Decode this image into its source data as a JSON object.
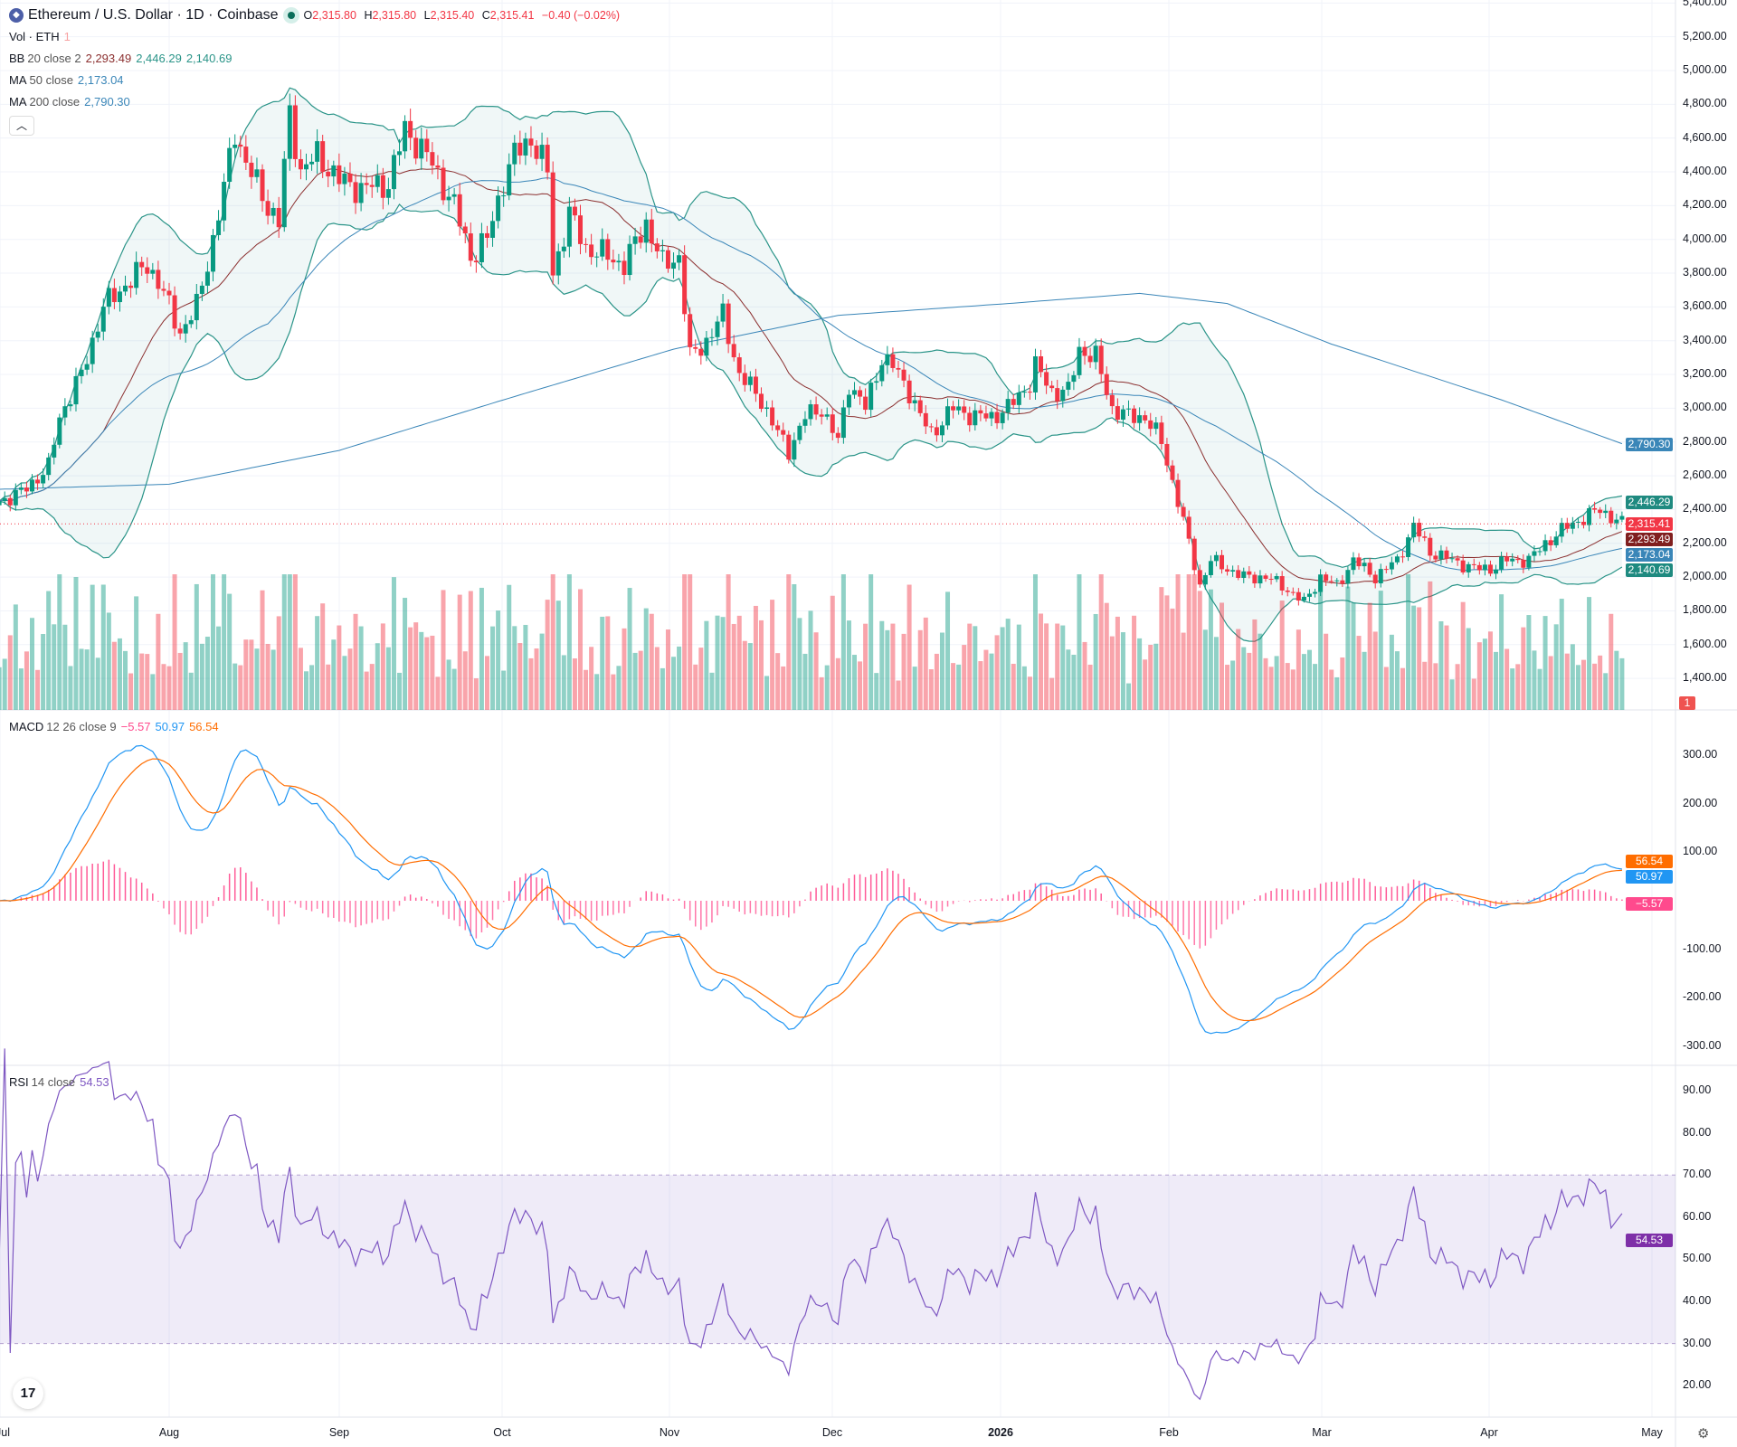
{
  "header": {
    "symbol": "Ethereum / U.S. Dollar · 1D · Coinbase",
    "open_label": "O",
    "open": "2,315.80",
    "high_label": "H",
    "high": "2,315.80",
    "low_label": "L",
    "low": "2,315.40",
    "close_label": "C",
    "close": "2,315.41",
    "change": "−0.40 (−0.02%)",
    "market_status": "open"
  },
  "legend": {
    "vol_label": "Vol · ETH",
    "vol_value": "1",
    "bb_label": "BB",
    "bb_params": "20 close 2",
    "bb_basis": "2,293.49",
    "bb_upper": "2,446.29",
    "bb_lower": "2,140.69",
    "ma50_label": "MA",
    "ma50_params": "50 close",
    "ma50_value": "2,173.04",
    "ma200_label": "MA",
    "ma200_params": "200 close",
    "ma200_value": "2,790.30",
    "collapse_icon": "chevron-up"
  },
  "macd_legend": {
    "label": "MACD",
    "params": "12 26 close 9",
    "hist": "−5.57",
    "macd": "50.97",
    "signal": "56.54"
  },
  "rsi_legend": {
    "label": "RSI",
    "params": "14 close",
    "value": "54.53"
  },
  "colors": {
    "up": "#089981",
    "down": "#f23645",
    "bb": "#2a9488",
    "bb_basis": "#8b2f2f",
    "ma50": "#3a86b8",
    "ma200": "#3a86b8",
    "macd": "#2196f3",
    "signal": "#ff6d00",
    "hist": "#ff4a8d",
    "rsi": "#7e57c2"
  },
  "badges": {
    "ma200": "2,790.30",
    "bb_upper": "2,446.29",
    "last": "2,315.41",
    "bb_basis": "2,293.49",
    "ma50": "2,173.04",
    "bb_lower": "2,140.69",
    "vol": "1",
    "signal": "56.54",
    "macd": "50.97",
    "hist": "−5.57",
    "rsi": "54.53"
  },
  "time_axis": [
    "Jul",
    "Aug",
    "Sep",
    "Oct",
    "Nov",
    "Dec",
    "2026",
    "Feb",
    "Mar",
    "Apr",
    "May"
  ],
  "chart_data": [
    {
      "type": "candlestick",
      "title": "Ethereum / U.S. Dollar · 1D · Coinbase",
      "y_ticks": [
        "5,400.00",
        "5,200.00",
        "5,000.00",
        "4,800.00",
        "4,600.00",
        "4,400.00",
        "4,200.00",
        "4,000.00",
        "3,800.00",
        "3,600.00",
        "3,400.00",
        "3,200.00",
        "3,000.00",
        "2,800.00",
        "2,600.00",
        "2,400.00",
        "2,200.00",
        "2,000.00",
        "1,800.00",
        "1,600.00",
        "1,400.00"
      ],
      "ylim": [
        1300,
        5400
      ],
      "last_price": 2315.41,
      "close_samples": [
        [
          "2025-07-01",
          2450
        ],
        [
          "2025-07-05",
          2500
        ],
        [
          "2025-07-10",
          2650
        ],
        [
          "2025-07-12",
          2950
        ],
        [
          "2025-07-16",
          3200
        ],
        [
          "2025-07-20",
          3600
        ],
        [
          "2025-07-23",
          3700
        ],
        [
          "2025-07-28",
          3850
        ],
        [
          "2025-07-30",
          3750
        ],
        [
          "2025-08-03",
          3450
        ],
        [
          "2025-08-06",
          3600
        ],
        [
          "2025-08-09",
          4000
        ],
        [
          "2025-08-11",
          4300
        ],
        [
          "2025-08-13",
          4650
        ],
        [
          "2025-08-15",
          4450
        ],
        [
          "2025-08-19",
          4200
        ],
        [
          "2025-08-21",
          4100
        ],
        [
          "2025-08-23",
          4750
        ],
        [
          "2025-08-25",
          4400
        ],
        [
          "2025-08-28",
          4500
        ],
        [
          "2025-09-01",
          4350
        ],
        [
          "2025-09-05",
          4300
        ],
        [
          "2025-09-10",
          4330
        ],
        [
          "2025-09-13",
          4650
        ],
        [
          "2025-09-17",
          4500
        ],
        [
          "2025-09-22",
          4200
        ],
        [
          "2025-09-25",
          3900
        ],
        [
          "2025-09-28",
          4000
        ],
        [
          "2025-10-01",
          4350
        ],
        [
          "2025-10-03",
          4500
        ],
        [
          "2025-10-06",
          4600
        ],
        [
          "2025-10-09",
          4400
        ],
        [
          "2025-10-10",
          3800
        ],
        [
          "2025-10-13",
          4150
        ],
        [
          "2025-10-16",
          3950
        ],
        [
          "2025-10-20",
          3900
        ],
        [
          "2025-10-23",
          3850
        ],
        [
          "2025-10-27",
          4100
        ],
        [
          "2025-10-30",
          3850
        ],
        [
          "2025-11-02",
          3900
        ],
        [
          "2025-11-04",
          3300
        ],
        [
          "2025-11-07",
          3400
        ],
        [
          "2025-11-10",
          3550
        ],
        [
          "2025-11-13",
          3200
        ],
        [
          "2025-11-17",
          3050
        ],
        [
          "2025-11-20",
          2850
        ],
        [
          "2025-11-22",
          2750
        ],
        [
          "2025-11-25",
          2950
        ],
        [
          "2025-11-28",
          3000
        ],
        [
          "2025-12-01",
          2800
        ],
        [
          "2025-12-03",
          3150
        ],
        [
          "2025-12-06",
          3000
        ],
        [
          "2025-12-09",
          3300
        ],
        [
          "2025-12-11",
          3250
        ],
        [
          "2025-12-14",
          3100
        ],
        [
          "2025-12-16",
          2950
        ],
        [
          "2025-12-18",
          2850
        ],
        [
          "2025-12-22",
          3000
        ],
        [
          "2025-12-26",
          2950
        ],
        [
          "2025-12-29",
          2950
        ],
        [
          "2026-01-01",
          3000
        ],
        [
          "2026-01-05",
          3150
        ],
        [
          "2026-01-06",
          3250
        ],
        [
          "2026-01-09",
          3100
        ],
        [
          "2026-01-12",
          3100
        ],
        [
          "2026-01-14",
          3350
        ],
        [
          "2026-01-17",
          3300
        ],
        [
          "2026-01-20",
          3000
        ],
        [
          "2026-01-23",
          2950
        ],
        [
          "2026-01-26",
          2950
        ],
        [
          "2026-01-29",
          2800
        ],
        [
          "2026-02-01",
          2450
        ],
        [
          "2026-02-03",
          2200
        ],
        [
          "2026-02-05",
          1950
        ],
        [
          "2026-02-07",
          2100
        ],
        [
          "2026-02-10",
          2050
        ],
        [
          "2026-02-13",
          2000
        ],
        [
          "2026-02-17",
          2000
        ],
        [
          "2026-02-20",
          1950
        ],
        [
          "2026-02-24",
          1850
        ],
        [
          "2026-02-27",
          2000
        ],
        [
          "2026-03-02",
          1950
        ],
        [
          "2026-03-05",
          2100
        ],
        [
          "2026-03-09",
          2000
        ],
        [
          "2026-03-13",
          2100
        ],
        [
          "2026-03-16",
          2300
        ],
        [
          "2026-03-19",
          2150
        ],
        [
          "2026-03-23",
          2100
        ],
        [
          "2026-03-27",
          2050
        ],
        [
          "2026-03-30",
          2050
        ],
        [
          "2026-04-02",
          2100
        ],
        [
          "2026-04-06",
          2100
        ],
        [
          "2026-04-09",
          2200
        ],
        [
          "2026-04-13",
          2300
        ],
        [
          "2026-04-16",
          2350
        ],
        [
          "2026-04-19",
          2400
        ],
        [
          "2026-04-23",
          2315
        ]
      ],
      "ma200_samples": [
        [
          "2025-07-01",
          2520
        ],
        [
          "2025-08-01",
          2550
        ],
        [
          "2025-09-01",
          2750
        ],
        [
          "2025-10-01",
          3050
        ],
        [
          "2025-11-01",
          3350
        ],
        [
          "2025-12-01",
          3550
        ],
        [
          "2026-01-01",
          3620
        ],
        [
          "2026-01-25",
          3680
        ],
        [
          "2026-02-10",
          3620
        ],
        [
          "2026-03-01",
          3380
        ],
        [
          "2026-04-01",
          3050
        ],
        [
          "2026-04-23",
          2790
        ]
      ]
    },
    {
      "type": "line",
      "name": "MACD 12 26 close 9",
      "y_ticks": [
        "300.00",
        "200.00",
        "100.00",
        "-100.00",
        "-200.00",
        "-300.00"
      ],
      "ylim": [
        -350,
        370
      ]
    },
    {
      "type": "line",
      "name": "RSI 14 close",
      "y_ticks": [
        "90.00",
        "80.00",
        "70.00",
        "60.00",
        "50.00",
        "40.00",
        "30.00",
        "20.00"
      ],
      "ylim": [
        15,
        95
      ],
      "band": [
        30,
        70
      ]
    }
  ]
}
